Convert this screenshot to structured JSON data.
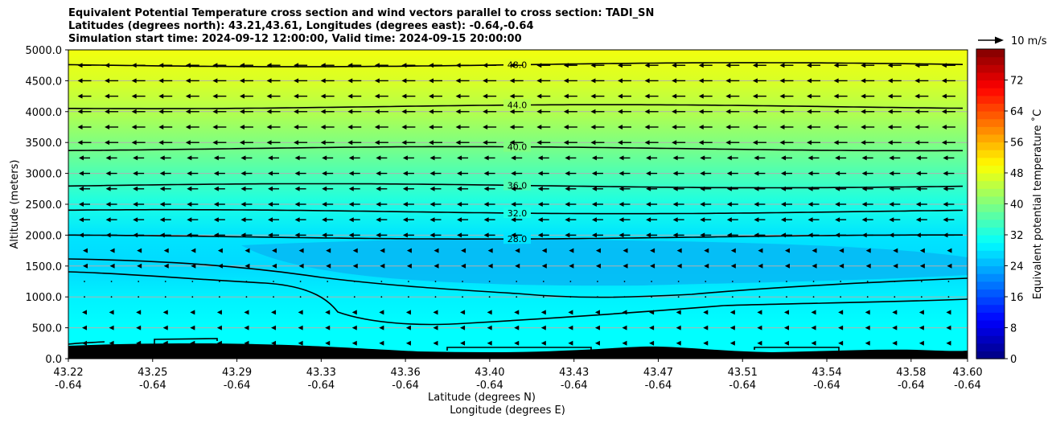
{
  "title_lines": [
    "Equivalent Potential Temperature cross section and wind vectors parallel to cross section: TADI_SN",
    "Latitudes (degrees north): 43.21,43.61, Longitudes (degrees east): -0.64,-0.64",
    "Simulation start time: 2024-09-12 12:00:00, Valid time: 2024-09-15 20:00:00"
  ],
  "chart_data": {
    "type": "heatmap",
    "description_axis": {
      "ylabel": "Altitude (meters)",
      "xlabel_line1": "Latitude (degrees N)",
      "xlabel_line2": "Longitude (degrees E)",
      "ylim": [
        0,
        5000
      ],
      "yticks": [
        "0.0",
        "500.0",
        "1000.0",
        "1500.0",
        "2000.0",
        "2500.0",
        "3000.0",
        "3500.0",
        "4000.0",
        "4500.0",
        "5000.0"
      ],
      "xticks_lat": [
        "43.22",
        "43.25",
        "43.29",
        "43.33",
        "43.36",
        "43.40",
        "43.43",
        "43.47",
        "43.51",
        "43.54",
        "43.58",
        "43.60"
      ],
      "xticks_lon": [
        "-0.64",
        "-0.64",
        "-0.64",
        "-0.64",
        "-0.64",
        "-0.64",
        "-0.64",
        "-0.64",
        "-0.64",
        "-0.64",
        "-0.64",
        "-0.64"
      ],
      "grid": "horizontal"
    },
    "colorbar": {
      "label": "Equivalent potential temperature ˚C",
      "range": [
        0,
        80
      ],
      "ticks": [
        "0",
        "8",
        "16",
        "24",
        "32",
        "40",
        "48",
        "56",
        "64",
        "72"
      ],
      "colormap": "jet"
    },
    "wind_key": "10 m/s",
    "contour_labels": [
      "48.0",
      "44.0",
      "40.0",
      "36.0",
      "32.0",
      "28.0",
      "28.0",
      "28.0",
      "32.0"
    ],
    "theta_e_profile": [
      {
        "altitude": 0,
        "value": 30
      },
      {
        "altitude": 500,
        "value": 30
      },
      {
        "altitude": 1000,
        "value": 29
      },
      {
        "altitude": 1500,
        "value": 27
      },
      {
        "altitude": 2000,
        "value": 28
      },
      {
        "altitude": 2500,
        "value": 32
      },
      {
        "altitude": 3000,
        "value": 36
      },
      {
        "altitude": 3500,
        "value": 40
      },
      {
        "altitude": 4000,
        "value": 44
      },
      {
        "altitude": 4500,
        "value": 47
      },
      {
        "altitude": 5000,
        "value": 49
      }
    ],
    "contours": [
      {
        "level": 48,
        "label": "48.0",
        "altitude_m": 4760
      },
      {
        "level": 44,
        "label": "44.0",
        "altitude_m": 4080
      },
      {
        "level": 40,
        "label": "40.0",
        "altitude_m": 3400
      },
      {
        "level": 36,
        "label": "36.0",
        "altitude_m": 2800
      },
      {
        "level": 32,
        "label": "32.0",
        "altitude_m": 2380
      },
      {
        "level": 28,
        "label": "28.0",
        "altitude_m": 1970
      }
    ]
  }
}
